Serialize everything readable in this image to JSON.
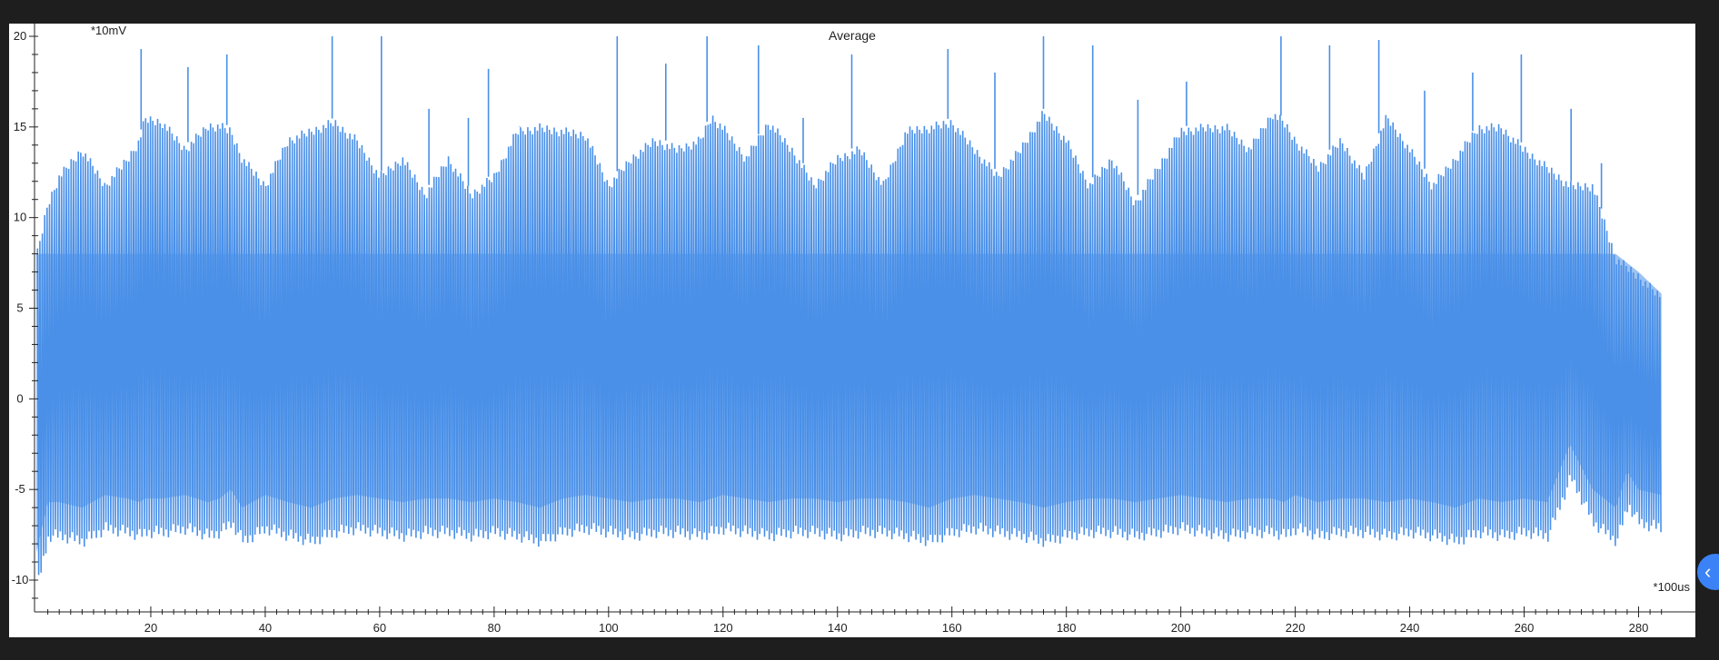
{
  "chart_data": {
    "type": "line",
    "title": "Average",
    "ylabel": "*10mV",
    "xlabel": "*100us",
    "xlim": [
      0,
      285
    ],
    "ylim": [
      -11,
      20.5
    ],
    "x_ticks": [
      20,
      40,
      60,
      80,
      100,
      120,
      140,
      160,
      180,
      200,
      220,
      240,
      260,
      280
    ],
    "y_ticks": [
      -10,
      -5,
      0,
      5,
      10,
      15,
      20
    ],
    "grid": false,
    "legend": "none",
    "series": [
      {
        "color": "#4a90e8",
        "envelope": {
          "x": [
            0,
            2,
            4,
            8,
            12,
            16,
            18,
            19,
            22,
            26,
            30,
            32,
            34,
            36,
            40,
            44,
            48,
            52,
            56,
            60,
            64,
            68,
            72,
            76,
            80,
            84,
            88,
            92,
            96,
            100,
            104,
            108,
            112,
            116,
            118,
            120,
            124,
            128,
            132,
            136,
            140,
            144,
            148,
            152,
            156,
            160,
            164,
            168,
            172,
            176,
            180,
            184,
            188,
            192,
            196,
            200,
            204,
            208,
            212,
            216,
            218,
            220,
            224,
            228,
            232,
            236,
            240,
            244,
            248,
            252,
            256,
            260,
            264,
            268,
            272,
            276,
            278,
            280,
            284
          ],
          "upper": [
            8,
            11,
            12.5,
            14,
            12,
            13.5,
            14.5,
            15.7,
            15.5,
            14,
            15.3,
            15.3,
            15,
            13.5,
            12,
            14.5,
            15,
            15.5,
            14.5,
            12.5,
            13.5,
            11.5,
            13.5,
            11.5,
            12.5,
            15,
            15.2,
            15,
            14.8,
            12,
            13.5,
            14.5,
            14,
            14.5,
            15.8,
            15.2,
            13.5,
            15.5,
            14,
            12,
            13.5,
            14,
            12,
            15,
            15.2,
            15.5,
            14,
            12.5,
            14,
            16,
            14.5,
            12,
            13.5,
            11,
            13,
            15,
            15.2,
            15.2,
            14,
            16,
            15.5,
            14.5,
            13,
            14.5,
            12.5,
            15.8,
            14,
            12,
            13.5,
            15.2,
            15.2,
            14,
            13,
            12,
            12,
            8,
            7.5,
            7,
            5.8
          ],
          "lower": [
            -10,
            -7.2,
            -7.2,
            -7.5,
            -6.8,
            -7,
            -7.2,
            -7,
            -7,
            -6.8,
            -7.2,
            -7,
            -6.5,
            -7.5,
            -6.8,
            -7.2,
            -7.5,
            -7,
            -6.8,
            -7,
            -7.2,
            -7,
            -7,
            -7.2,
            -7,
            -7.2,
            -7.5,
            -7,
            -6.8,
            -7,
            -7.2,
            -7,
            -7,
            -7.2,
            -7,
            -6.8,
            -7,
            -7.2,
            -7,
            -7,
            -7.2,
            -7,
            -7,
            -7.2,
            -7.5,
            -7,
            -6.8,
            -7,
            -7.2,
            -7.5,
            -7.2,
            -7,
            -7,
            -7.2,
            -7,
            -6.8,
            -7,
            -7.2,
            -7,
            -7,
            -7.2,
            -6.8,
            -7.2,
            -7,
            -7,
            -7.2,
            -7,
            -7.2,
            -7.5,
            -7,
            -7.2,
            -7,
            -7.2,
            -4,
            -6.5,
            -7.5,
            -5.5,
            -6.5,
            -6.8
          ]
        },
        "spike_peaks": {
          "x": [
            18.3,
            26.5,
            33.3,
            51.7,
            60.3,
            68.6,
            75.5,
            79,
            84.5,
            101.5,
            110,
            117.2,
            126.2,
            134,
            142.5,
            159.3,
            167.5,
            176,
            184.6,
            192.5,
            201,
            217.5,
            226,
            234.6,
            242.6,
            251,
            259.5,
            268.2,
            273.5
          ],
          "y": [
            19.3,
            18.3,
            19.0,
            20,
            20,
            16,
            15.5,
            18.2,
            15,
            20,
            18.5,
            20,
            19.5,
            15.5,
            19,
            19.3,
            18,
            20,
            19.5,
            16.5,
            17.5,
            20,
            19.5,
            19.8,
            17,
            18,
            19,
            16,
            13
          ]
        }
      }
    ]
  }
}
